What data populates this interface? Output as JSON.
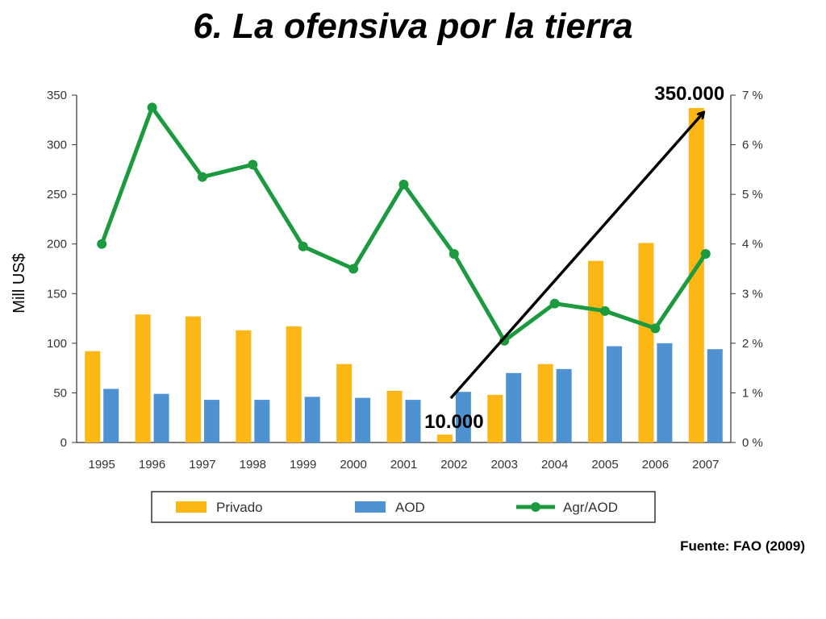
{
  "slide": {
    "title": "6. La ofensiva por la tierra",
    "source": "Fuente: FAO (2009)"
  },
  "chart_data": {
    "type": "bar",
    "categories": [
      "1995",
      "1996",
      "1997",
      "1998",
      "1999",
      "2000",
      "2001",
      "2002",
      "2003",
      "2004",
      "2005",
      "2006",
      "2007"
    ],
    "series": [
      {
        "name": "Privado",
        "type": "bar",
        "axis": "left",
        "color": "#FDB714",
        "values": [
          92,
          129,
          127,
          113,
          117,
          79,
          52,
          8,
          48,
          79,
          183,
          201,
          337
        ]
      },
      {
        "name": "AOD",
        "type": "bar",
        "axis": "left",
        "color": "#4E92D2",
        "values": [
          54,
          49,
          43,
          43,
          46,
          45,
          43,
          51,
          70,
          74,
          97,
          100,
          94
        ]
      },
      {
        "name": "Agr/AOD",
        "type": "line",
        "axis": "right",
        "color": "#1C9A3F",
        "values": [
          4.0,
          6.75,
          5.35,
          5.6,
          3.95,
          3.5,
          5.2,
          3.8,
          2.05,
          2.8,
          2.65,
          2.3,
          3.8
        ]
      }
    ],
    "ylabel": "Mill US$",
    "ylim": [
      0,
      350
    ],
    "yticks": [
      "0",
      "50",
      "100",
      "150",
      "200",
      "250",
      "300",
      "350"
    ],
    "y2lim": [
      0,
      7
    ],
    "y2ticks": [
      "0 %",
      "1 %",
      "2 %",
      "3 %",
      "4 %",
      "5 %",
      "6 %",
      "7 %"
    ],
    "legend_position": "bottom",
    "grid": false,
    "annotations": [
      {
        "text": "10.000",
        "year": "2002"
      },
      {
        "text": "350.000",
        "year": "2007"
      }
    ]
  }
}
